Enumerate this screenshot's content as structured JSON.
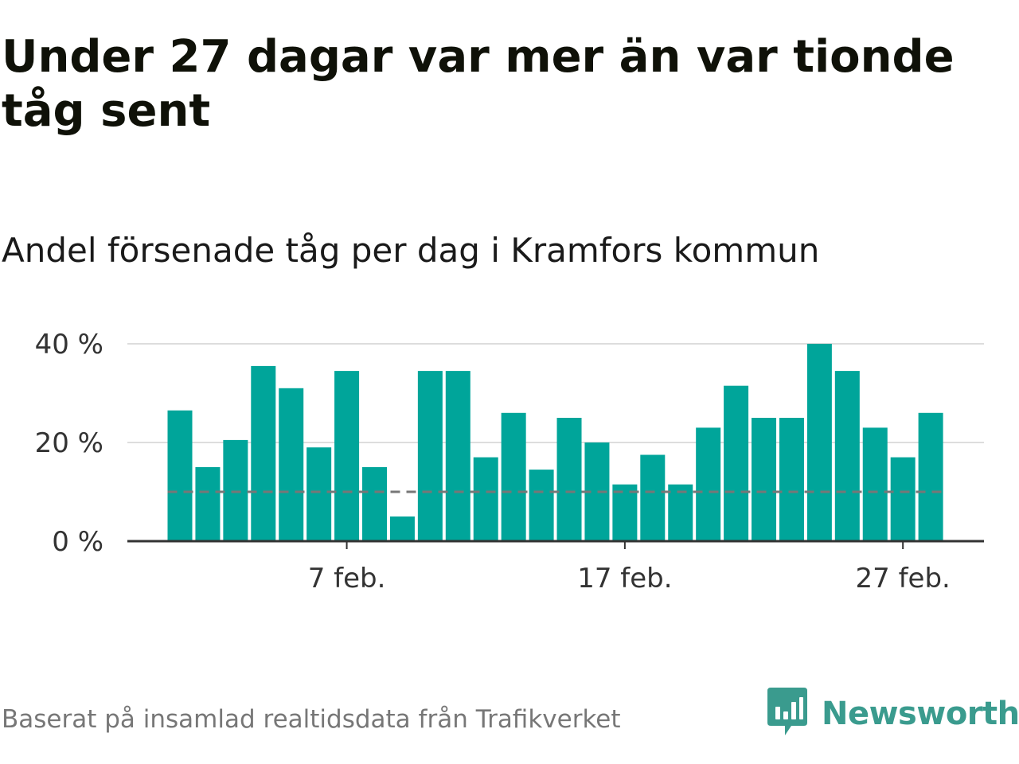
{
  "title": "Under 27 dagar var mer än var tionde tåg sent",
  "subtitle": "Andel försenade tåg per dag i Kramfors kommun",
  "footer": "Baserat på insamlad realtidsdata från Trafikverket",
  "brand": {
    "name": "Newsworthy",
    "icon": "newsworthy-chart-bubble-icon",
    "color": "#3a9b8e"
  },
  "colors": {
    "bar": "#00a59a",
    "reference_line": "#777777",
    "grid": "#dddddd",
    "axis": "#333333"
  },
  "chart_data": {
    "type": "bar",
    "x_start_day": 1,
    "x_month": "feb.",
    "values": [
      26.5,
      15,
      20.5,
      35.5,
      31,
      19,
      34.5,
      15,
      5,
      34.5,
      34.5,
      17,
      26,
      14.5,
      25,
      20,
      11.5,
      17.5,
      11.5,
      23,
      31.5,
      25,
      25,
      40,
      34.5,
      23,
      17,
      26
    ],
    "reference_line": 10,
    "ylim": [
      0,
      40
    ],
    "y_ticks": [
      {
        "value": 0,
        "label": "0 %"
      },
      {
        "value": 20,
        "label": "20 %"
      },
      {
        "value": 40,
        "label": "40 %"
      }
    ],
    "x_ticks": [
      {
        "day": 7,
        "label": "7 feb."
      },
      {
        "day": 17,
        "label": "17 feb."
      },
      {
        "day": 27,
        "label": "27 feb."
      }
    ],
    "grid": true
  }
}
